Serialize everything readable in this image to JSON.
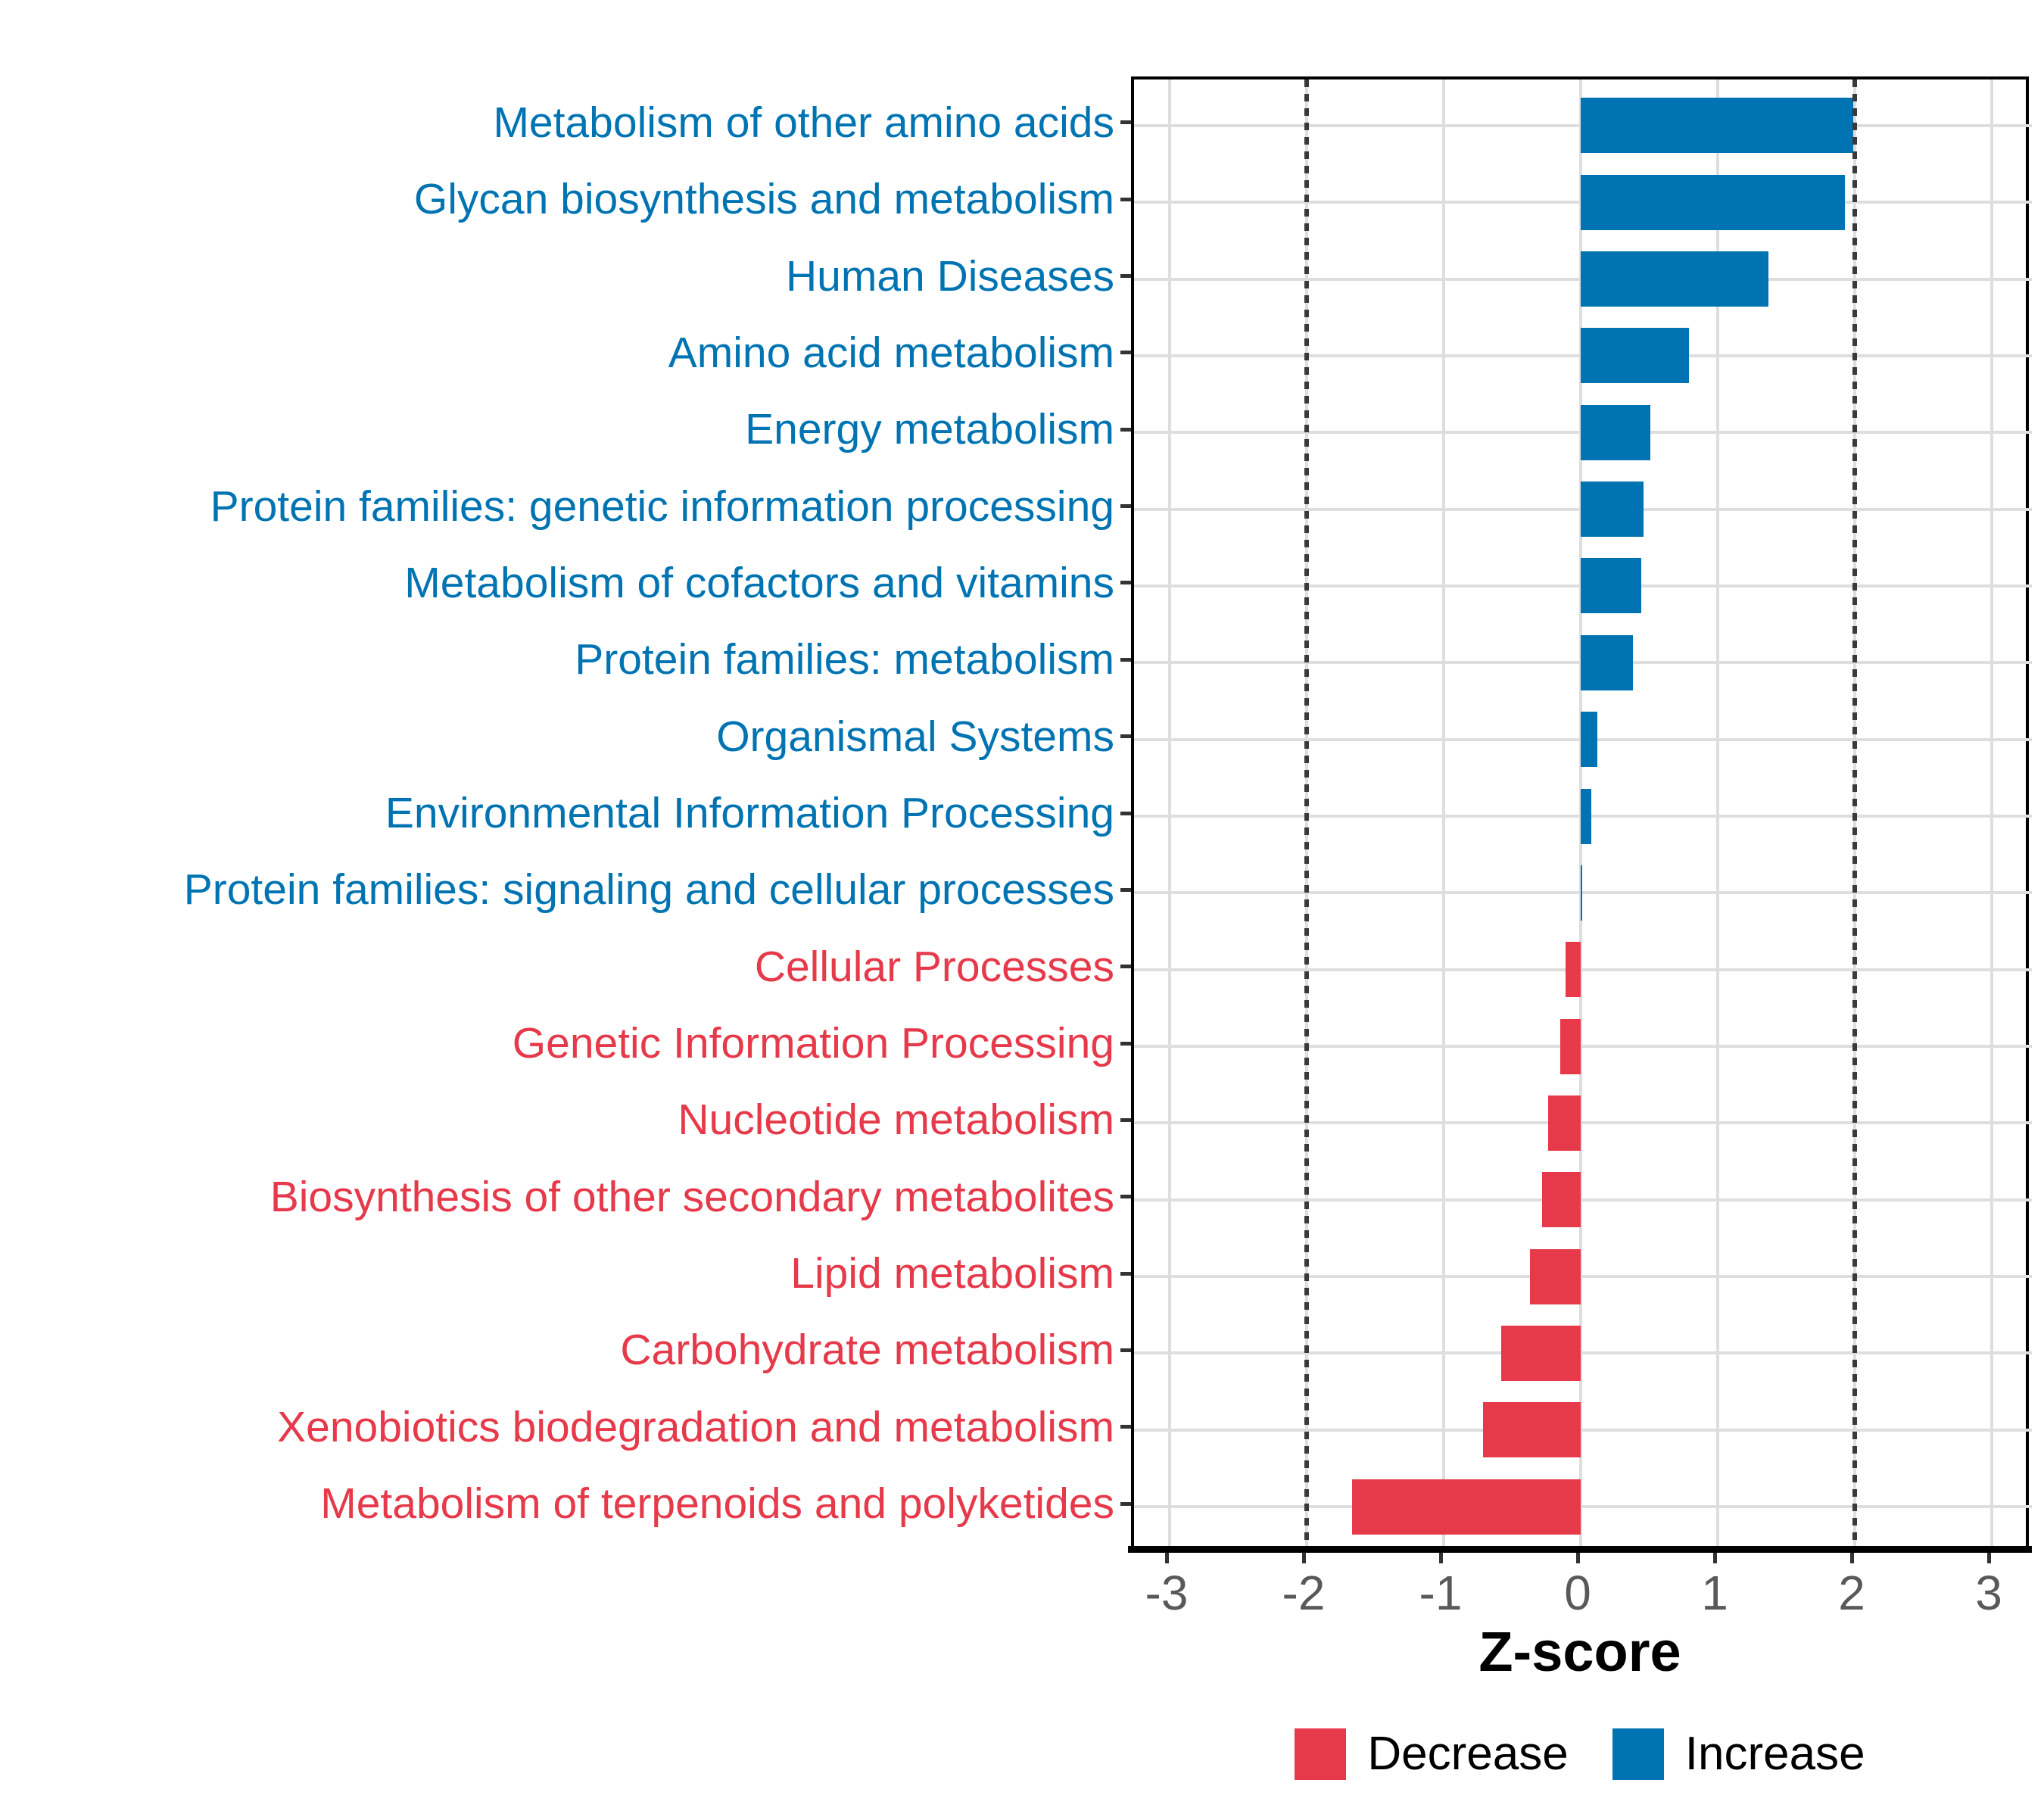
{
  "chart_data": {
    "type": "bar",
    "orientation": "horizontal",
    "xlabel": "Z-score",
    "x_ticks": [
      -3,
      -2,
      -1,
      0,
      1,
      2,
      3
    ],
    "xlim": [
      -3.3,
      3.3
    ],
    "grid": "major-only",
    "reference_lines": {
      "values": [
        -2,
        2
      ],
      "style": "dotted",
      "color": "#3a3a3a"
    },
    "categories": [
      "Metabolism of other amino acids",
      "Glycan biosynthesis and metabolism",
      "Human Diseases",
      "Amino acid metabolism",
      "Energy metabolism",
      "Protein families: genetic information processing",
      "Metabolism of cofactors and vitamins",
      "Protein families: metabolism",
      "Organismal Systems",
      "Environmental Information Processing",
      "Protein families: signaling and cellular processes",
      "Cellular Processes",
      "Genetic Information Processing",
      "Nucleotide metabolism",
      "Biosynthesis of other secondary metabolites",
      "Lipid metabolism",
      "Carbohydrate metabolism",
      "Xenobiotics biodegradation and metabolism",
      "Metabolism of terpenoids and polyketides"
    ],
    "values": [
      1.99,
      1.93,
      1.37,
      0.79,
      0.51,
      0.46,
      0.44,
      0.38,
      0.12,
      0.08,
      0.01,
      -0.11,
      -0.15,
      -0.24,
      -0.28,
      -0.37,
      -0.58,
      -0.71,
      -1.67
    ],
    "groups": [
      "Increase",
      "Increase",
      "Increase",
      "Increase",
      "Increase",
      "Increase",
      "Increase",
      "Increase",
      "Increase",
      "Increase",
      "Increase",
      "Decrease",
      "Decrease",
      "Decrease",
      "Decrease",
      "Decrease",
      "Decrease",
      "Decrease",
      "Decrease"
    ],
    "legend": {
      "position": "bottom",
      "entries": [
        {
          "label": "Decrease",
          "color": "#e6394a"
        },
        {
          "label": "Increase",
          "color": "#0074b2"
        }
      ]
    },
    "colors": {
      "increase": "#0074b2",
      "decrease": "#e6394a",
      "gridline": "#dedede",
      "axis_text": "#595959",
      "panel_border": "#000000"
    }
  }
}
